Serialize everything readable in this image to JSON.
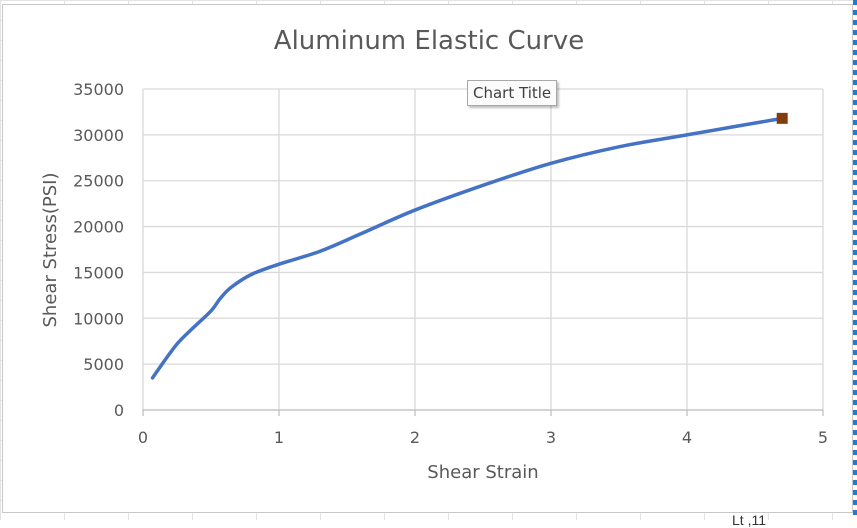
{
  "chart_data": {
    "type": "line",
    "title": "Aluminum Elastic Curve",
    "xlabel": "Shear Strain",
    "ylabel": "Shear Stress(PSI)",
    "xlim": [
      0,
      5
    ],
    "ylim": [
      0,
      35000
    ],
    "x_ticks": [
      "0",
      "1",
      "2",
      "3",
      "4",
      "5"
    ],
    "y_ticks": [
      "0",
      "5000",
      "10000",
      "15000",
      "20000",
      "25000",
      "30000",
      "35000"
    ],
    "grid": true,
    "legend": "none",
    "series": [
      {
        "color": "#4472c4",
        "x": [
          0.07,
          0.15,
          0.25,
          0.35,
          0.5,
          0.57,
          0.65,
          0.8,
          1.0,
          1.3,
          1.6,
          2.0,
          2.5,
          3.0,
          3.5,
          4.0,
          4.7
        ],
        "y": [
          3500,
          5200,
          7200,
          8700,
          10800,
          12200,
          13400,
          14800,
          15900,
          17300,
          19200,
          21800,
          24500,
          26900,
          28700,
          30000,
          31800
        ]
      }
    ],
    "end_marker": {
      "x": 4.7,
      "y": 31800,
      "color": "#843c0c"
    }
  },
  "tooltip": {
    "text": "Chart Title"
  },
  "bottom_fragment": "Lt  ,11"
}
